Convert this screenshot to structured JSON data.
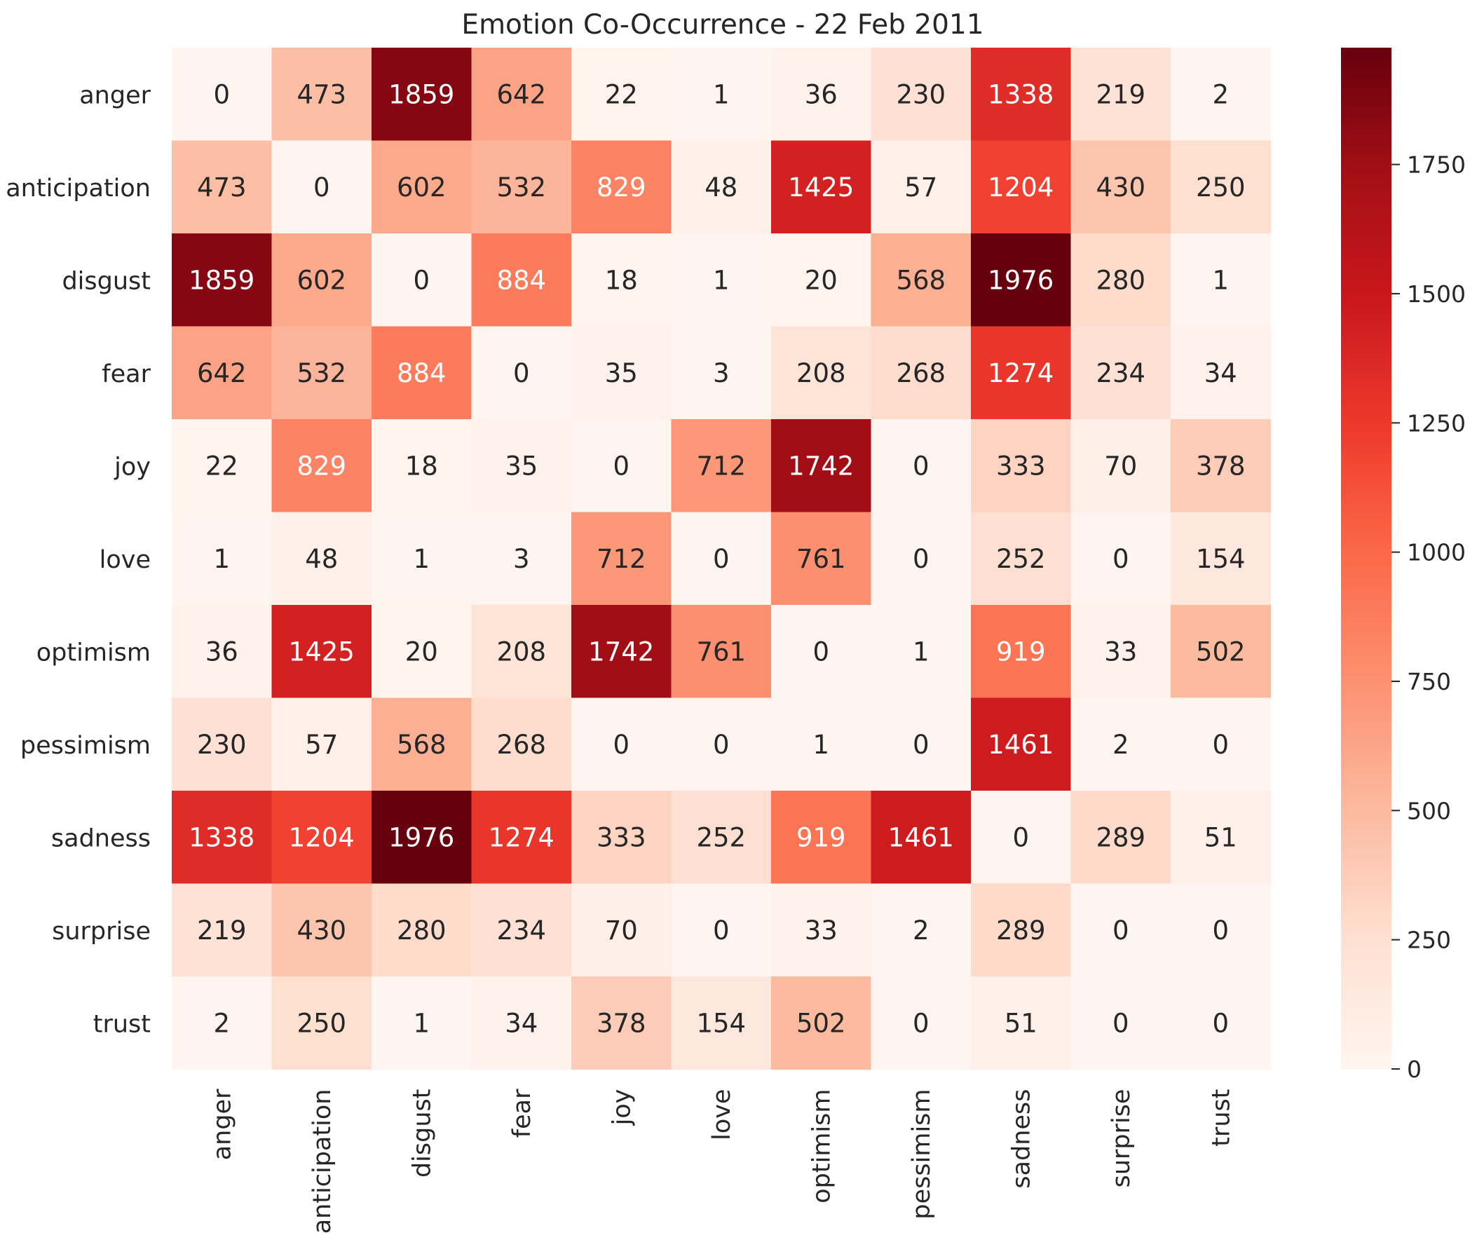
{
  "chart_data": {
    "type": "heatmap",
    "title": "Emotion Co-Occurrence - 22 Feb 2011",
    "xlabel": "",
    "ylabel": "",
    "categories": [
      "anger",
      "anticipation",
      "disgust",
      "fear",
      "joy",
      "love",
      "optimism",
      "pessimism",
      "sadness",
      "surprise",
      "trust"
    ],
    "rows": [
      "anger",
      "anticipation",
      "disgust",
      "fear",
      "joy",
      "love",
      "optimism",
      "pessimism",
      "sadness",
      "surprise",
      "trust"
    ],
    "values": [
      [
        0,
        473,
        1859,
        642,
        22,
        1,
        36,
        230,
        1338,
        219,
        2
      ],
      [
        473,
        0,
        602,
        532,
        829,
        48,
        1425,
        57,
        1204,
        430,
        250
      ],
      [
        1859,
        602,
        0,
        884,
        18,
        1,
        20,
        568,
        1976,
        280,
        1
      ],
      [
        642,
        532,
        884,
        0,
        35,
        3,
        208,
        268,
        1274,
        234,
        34
      ],
      [
        22,
        829,
        18,
        35,
        0,
        712,
        1742,
        0,
        333,
        70,
        378
      ],
      [
        1,
        48,
        1,
        3,
        712,
        0,
        761,
        0,
        252,
        0,
        154
      ],
      [
        36,
        1425,
        20,
        208,
        1742,
        761,
        0,
        1,
        919,
        33,
        502
      ],
      [
        230,
        57,
        568,
        268,
        0,
        0,
        1,
        0,
        1461,
        2,
        0
      ],
      [
        1338,
        1204,
        1976,
        1274,
        333,
        252,
        919,
        1461,
        0,
        289,
        51
      ],
      [
        219,
        430,
        280,
        234,
        70,
        0,
        33,
        2,
        289,
        0,
        0
      ],
      [
        2,
        250,
        1,
        34,
        378,
        154,
        502,
        0,
        51,
        0,
        0
      ]
    ],
    "colorbar": {
      "min": 0,
      "max": 1976,
      "ticks": [
        0,
        250,
        500,
        750,
        1000,
        1250,
        1500,
        1750
      ],
      "colormap": "Reds",
      "low_color": "#fff5f0",
      "high_color": "#67000d"
    },
    "annotated": true,
    "grid": false,
    "legend": "colorbar-right"
  }
}
